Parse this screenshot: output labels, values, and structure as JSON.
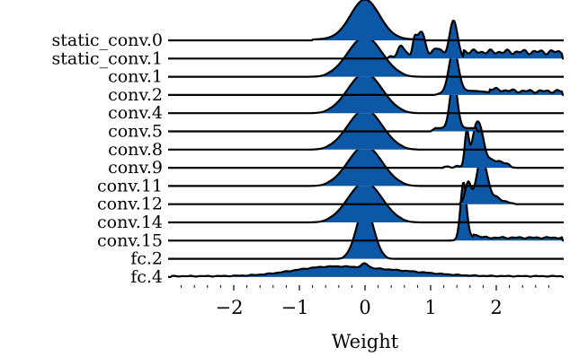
{
  "chart_data": {
    "type": "ridgeline",
    "xlabel": "Weight",
    "xlim": [
      -2.95,
      3.0
    ],
    "x_ticks": [
      -2,
      -1,
      0,
      1,
      2
    ],
    "x_tick_labels": [
      "−2",
      "−1",
      "0",
      "1",
      "2"
    ],
    "minor_tick_step": 0.2,
    "fill_color": "#0d58a6",
    "line_color": "#000000",
    "series": [
      {
        "name": "static_conv.0",
        "value_range": [
          -0.8,
          0.9
        ]
      },
      {
        "name": "static_conv.1",
        "value_range": [
          0.3,
          3.0
        ]
      },
      {
        "name": "conv.1",
        "value_range": [
          -0.85,
          0.85
        ]
      },
      {
        "name": "conv.2",
        "value_range": [
          1.05,
          3.0
        ]
      },
      {
        "name": "conv.4",
        "value_range": [
          -0.8,
          0.8
        ]
      },
      {
        "name": "conv.5",
        "value_range": [
          1.0,
          1.7
        ]
      },
      {
        "name": "conv.8",
        "value_range": [
          -0.8,
          0.8
        ]
      },
      {
        "name": "conv.9",
        "value_range": [
          1.2,
          2.3
        ]
      },
      {
        "name": "conv.11",
        "value_range": [
          -0.85,
          0.85
        ]
      },
      {
        "name": "conv.12",
        "value_range": [
          1.45,
          2.3
        ]
      },
      {
        "name": "conv.14",
        "value_range": [
          -0.85,
          0.85
        ]
      },
      {
        "name": "conv.15",
        "value_range": [
          1.2,
          3.0
        ]
      },
      {
        "name": "fc.2",
        "value_range": [
          -0.45,
          0.45
        ]
      },
      {
        "name": "fc.4",
        "value_range": [
          -2.95,
          3.0
        ]
      }
    ]
  }
}
